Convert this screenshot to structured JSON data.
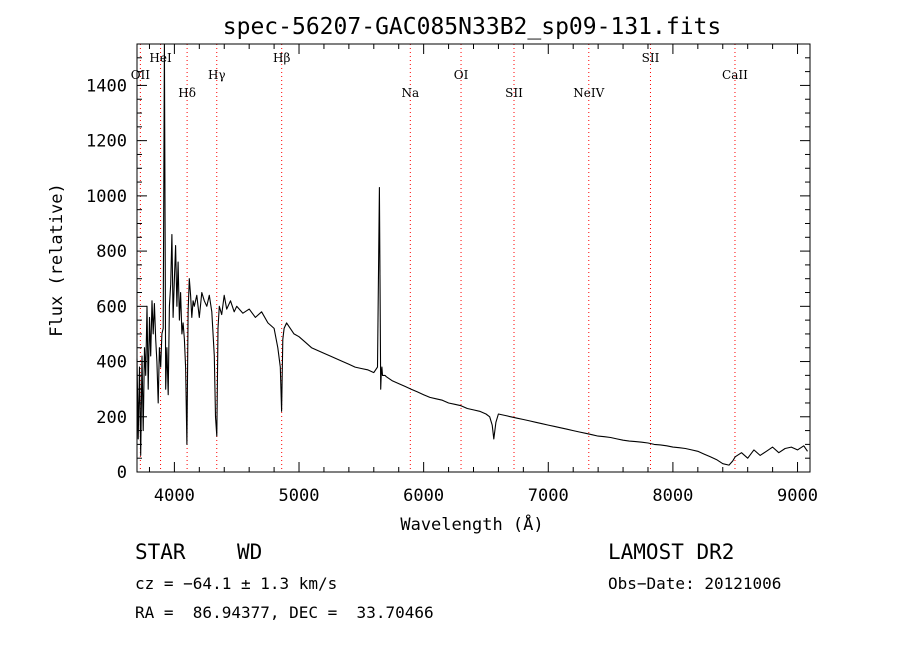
{
  "chart_data": {
    "type": "line",
    "title": "spec-56207-GAC085N33B2_sp09-131.fits",
    "xlabel": "Wavelength (Å)",
    "ylabel": "Flux (relative)",
    "xlim": [
      3700,
      9100
    ],
    "ylim": [
      0,
      1550
    ],
    "x_ticks": [
      4000,
      5000,
      6000,
      7000,
      8000,
      9000
    ],
    "y_ticks": [
      0,
      200,
      400,
      600,
      800,
      1000,
      1200,
      1400
    ],
    "x_tick_labels": [
      "4000",
      "5000",
      "6000",
      "7000",
      "8000",
      "9000"
    ],
    "y_tick_labels": [
      "0",
      "200",
      "400",
      "600",
      "800",
      "1000",
      "1200",
      "1400"
    ],
    "grid": false,
    "line_color": "#000000",
    "marker_color": "#ff0000",
    "series": [
      {
        "x": [
          3700,
          3710,
          3720,
          3730,
          3740,
          3750,
          3760,
          3770,
          3780,
          3790,
          3800,
          3810,
          3820,
          3830,
          3840,
          3850,
          3860,
          3870,
          3880,
          3890,
          3900,
          3910,
          3920,
          3930,
          3940,
          3950,
          3960,
          3970,
          3980,
          3990,
          4000,
          4010,
          4020,
          4030,
          4040,
          4050,
          4060,
          4070,
          4080,
          4090,
          4100,
          4110,
          4120,
          4130,
          4140,
          4150,
          4160,
          4180,
          4200,
          4220,
          4240,
          4260,
          4280,
          4300,
          4320,
          4330,
          4340,
          4350,
          4360,
          4380,
          4400,
          4420,
          4450,
          4480,
          4500,
          4550,
          4600,
          4650,
          4700,
          4750,
          4800,
          4830,
          4850,
          4860,
          4870,
          4880,
          4900,
          4930,
          4960,
          5000,
          5050,
          5100,
          5150,
          5200,
          5250,
          5300,
          5350,
          5400,
          5450,
          5500,
          5550,
          5600,
          5630,
          5645,
          5650,
          5655,
          5660,
          5665,
          5670,
          5690,
          5700,
          5750,
          5800,
          5850,
          5900,
          5950,
          6000,
          6050,
          6100,
          6150,
          6200,
          6250,
          6300,
          6350,
          6400,
          6450,
          6500,
          6530,
          6550,
          6563,
          6580,
          6600,
          6650,
          6700,
          6750,
          6800,
          6850,
          6900,
          6950,
          7000,
          7050,
          7100,
          7150,
          7200,
          7250,
          7300,
          7350,
          7400,
          7450,
          7500,
          7550,
          7600,
          7650,
          7700,
          7750,
          7800,
          7850,
          7900,
          7950,
          8000,
          8050,
          8100,
          8150,
          8200,
          8250,
          8300,
          8350,
          8400,
          8450,
          8480,
          8500,
          8550,
          8600,
          8650,
          8700,
          8750,
          8800,
          8850,
          8900,
          8950,
          9000,
          9050,
          9080
        ],
        "y": [
          410,
          120,
          380,
          60,
          420,
          150,
          450,
          350,
          600,
          300,
          560,
          420,
          620,
          500,
          610,
          480,
          400,
          250,
          450,
          380,
          500,
          520,
          1600,
          300,
          450,
          280,
          600,
          680,
          860,
          560,
          700,
          820,
          600,
          760,
          550,
          650,
          500,
          540,
          480,
          380,
          100,
          580,
          700,
          640,
          560,
          620,
          600,
          640,
          560,
          650,
          620,
          600,
          640,
          580,
          420,
          200,
          130,
          520,
          600,
          570,
          640,
          590,
          620,
          580,
          600,
          575,
          590,
          560,
          580,
          540,
          520,
          450,
          380,
          220,
          480,
          520,
          540,
          520,
          500,
          490,
          470,
          450,
          440,
          430,
          420,
          410,
          400,
          390,
          380,
          375,
          370,
          360,
          380,
          1030,
          700,
          300,
          360,
          380,
          350,
          350,
          345,
          330,
          320,
          310,
          300,
          290,
          280,
          270,
          265,
          260,
          250,
          245,
          240,
          230,
          225,
          220,
          210,
          200,
          170,
          120,
          180,
          210,
          205,
          200,
          195,
          190,
          185,
          180,
          175,
          170,
          165,
          160,
          155,
          150,
          145,
          140,
          135,
          130,
          128,
          125,
          120,
          115,
          112,
          110,
          108,
          105,
          100,
          98,
          95,
          90,
          88,
          85,
          80,
          75,
          65,
          55,
          45,
          30,
          25,
          40,
          55,
          70,
          50,
          80,
          60,
          75,
          90,
          70,
          85,
          90,
          80,
          95,
          75
        ]
      }
    ],
    "line_markers": [
      {
        "label": "OII",
        "x": 3727,
        "row": 2
      },
      {
        "label": "HeI",
        "x": 3889,
        "row": 1
      },
      {
        "label": "Hδ",
        "x": 4102,
        "row": 3
      },
      {
        "label": "Hγ",
        "x": 4340,
        "row": 2
      },
      {
        "label": "Hβ",
        "x": 4861,
        "row": 1
      },
      {
        "label": "Na",
        "x": 5893,
        "row": 3
      },
      {
        "label": "OI",
        "x": 6300,
        "row": 2
      },
      {
        "label": "SII",
        "x": 6725,
        "row": 3
      },
      {
        "label": "NeIV",
        "x": 7325,
        "row": 3
      },
      {
        "label": "SII",
        "x": 7820,
        "row": 1
      },
      {
        "label": "CaII",
        "x": 8498,
        "row": 2
      }
    ]
  },
  "info": {
    "class_label": "STAR",
    "subclass_label": "WD",
    "survey": "LAMOST DR2",
    "cz": "cz = −64.1 ± 1.3 km/s",
    "obs_date": "Obs−Date: 20121006",
    "coords": "RA =  86.94377, DEC =  33.70466"
  }
}
